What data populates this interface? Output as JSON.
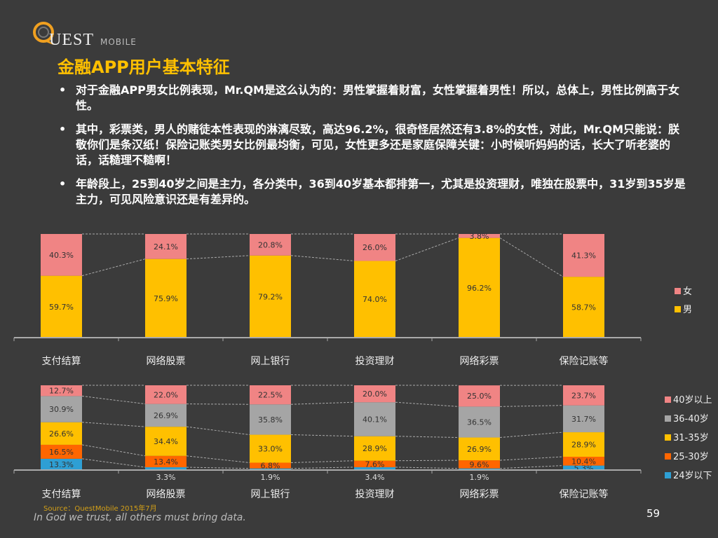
{
  "header": {
    "logo_text": "UEST",
    "logo_sub": "MOBILE",
    "title": "金融APP用户基本特征"
  },
  "bullets": [
    "对于金融APP男女比例表现，Mr.QM是这么认为的：男性掌握着财富，女性掌握着男性！所以，总体上，男性比例高于女性。",
    "其中，彩票类，男人的赌徒本性表现的淋漓尽致，高达96.2%，很奇怪居然还有3.8%的女性，对此，Mr.QM只能说：朕敬你们是条汉纸！保险记账类男女比例最均衡，可见，女性更多还是家庭保障关键：小时候听妈妈的话，长大了听老婆的话，话糙理不糙啊！",
    "年龄段上，25到40岁之间是主力，各分类中，36到40岁基本都排第一，尤其是投资理财，唯独在股票中，31岁到35岁是主力，可见风险意识还是有差异的。"
  ],
  "chart_data": [
    {
      "type": "bar",
      "stacked": true,
      "percent": true,
      "categories": [
        "支付结算",
        "网络股票",
        "网上银行",
        "投资理财",
        "网络彩票",
        "保险记账等"
      ],
      "series": [
        {
          "name": "男",
          "values": [
            59.7,
            75.9,
            79.2,
            74.0,
            96.2,
            58.7
          ],
          "color": "#ffc000"
        },
        {
          "name": "女",
          "values": [
            40.3,
            24.1,
            20.8,
            26.0,
            3.8,
            41.3
          ],
          "color": "#f08484"
        }
      ],
      "legend": "right",
      "ylim": [
        0,
        100
      ]
    },
    {
      "type": "bar",
      "stacked": true,
      "percent": true,
      "categories": [
        "支付结算",
        "网络股票",
        "网上银行",
        "投资理财",
        "网络彩票",
        "保险记账等"
      ],
      "series": [
        {
          "name": "24岁以下",
          "values": [
            13.3,
            3.3,
            1.9,
            3.4,
            1.9,
            5.3
          ],
          "color": "#2e9fd4"
        },
        {
          "name": "25-30岁",
          "values": [
            16.5,
            13.4,
            6.8,
            7.6,
            9.6,
            10.4
          ],
          "color": "#ff6600"
        },
        {
          "name": "31-35岁",
          "values": [
            26.6,
            34.4,
            33.0,
            28.9,
            26.9,
            28.9
          ],
          "color": "#ffc000"
        },
        {
          "name": "36-40岁",
          "values": [
            30.9,
            26.9,
            35.8,
            40.1,
            36.5,
            31.7
          ],
          "color": "#a5a5a5"
        },
        {
          "name": "40岁以上",
          "values": [
            12.7,
            22.0,
            22.5,
            20.0,
            25.0,
            23.7
          ],
          "color": "#f08484"
        }
      ],
      "legend": "right",
      "ylim": [
        0,
        100
      ]
    }
  ],
  "footer": {
    "source": "Source：QuestMobile   2015年7月",
    "motto": "In God we trust, all others must bring data.",
    "page": "59"
  }
}
